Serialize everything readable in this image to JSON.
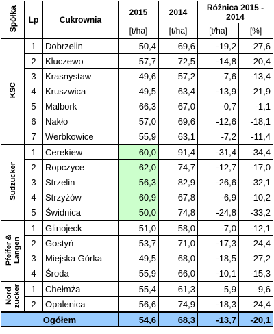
{
  "header": {
    "company": "Spółka",
    "lp": "Lp",
    "plant": "Cukrownia",
    "y2015": "2015",
    "y2014": "2014",
    "diff": "Różnica 2015 - 2014",
    "units": [
      "[t/ha]",
      "[t/ha]",
      "[t/ha]",
      "[%]"
    ]
  },
  "groups": [
    {
      "name": "KSC",
      "rows": [
        [
          "1",
          "Dobrzelin",
          "50,4",
          "69,6",
          "-19,2",
          "-27,6"
        ],
        [
          "2",
          "Kluczewo",
          "57,7",
          "72,5",
          "-14,8",
          "-20,4"
        ],
        [
          "3",
          "Krasnystaw",
          "49,6",
          "57,2",
          "-7,6",
          "-13,4"
        ],
        [
          "4",
          "Kruszwica",
          "49,5",
          "63,4",
          "-13,9",
          "-21,9"
        ],
        [
          "5",
          "Malbork",
          "66,3",
          "67,0",
          "-0,7",
          "-1,1"
        ],
        [
          "6",
          "Nakło",
          "57,0",
          "69,6",
          "-12,6",
          "-18,1"
        ],
        [
          "7",
          "Werbkowice",
          "55,9",
          "63,1",
          "-7,2",
          "-11,4"
        ]
      ]
    },
    {
      "name": "Sudzucker",
      "highlight": "#ccffcc",
      "rows": [
        [
          "1",
          "Cerekiew",
          "60,0",
          "91,4",
          "-31,4",
          "-34,4"
        ],
        [
          "2",
          "Ropczyce",
          "62,0",
          "74,7",
          "-12,7",
          "-17,0"
        ],
        [
          "3",
          "Strzelin",
          "56,3",
          "82,9",
          "-26,6",
          "-32,1"
        ],
        [
          "4",
          "Strzyżów",
          "60,9",
          "67,8",
          "-6,9",
          "-10,2"
        ],
        [
          "5",
          "Świdnica",
          "50,0",
          "74,8",
          "-24,8",
          "-33,2"
        ]
      ]
    },
    {
      "name": "Pfeifer & Langen",
      "rows": [
        [
          "1",
          "Glinojeck",
          "51,0",
          "58,0",
          "-7,0",
          "-12,1"
        ],
        [
          "2",
          "Gostyń",
          "53,7",
          "71,0",
          "-17,3",
          "-24,4"
        ],
        [
          "3",
          "Miejska Górka",
          "49,5",
          "68,0",
          "-18,5",
          "-27,2"
        ],
        [
          "4",
          "Środa",
          "55,9",
          "66,0",
          "-10,1",
          "-15,3"
        ]
      ]
    },
    {
      "name": "Nord zucker",
      "rows": [
        [
          "1",
          "Chełmża",
          "55,4",
          "61,3",
          "-5,9",
          "-9,6"
        ],
        [
          "2",
          "Opalenica",
          "56,6",
          "74,9",
          "-18,3",
          "-24,4"
        ]
      ]
    }
  ],
  "total": {
    "label": "Ogółem",
    "values": [
      "54,6",
      "68,3",
      "-13,7",
      "-20,1"
    ]
  }
}
